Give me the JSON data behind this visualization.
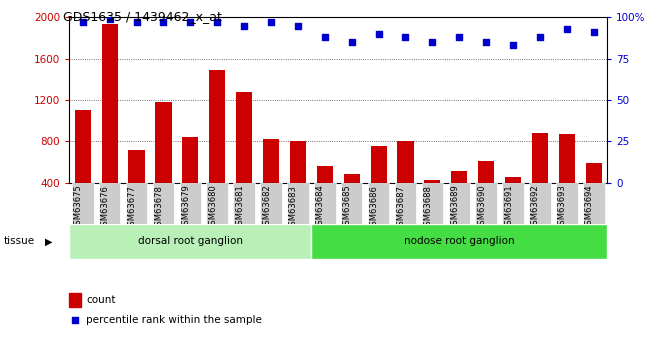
{
  "title": "GDS1635 / 1439462_x_at",
  "categories": [
    "GSM63675",
    "GSM63676",
    "GSM63677",
    "GSM63678",
    "GSM63679",
    "GSM63680",
    "GSM63681",
    "GSM63682",
    "GSM63683",
    "GSM63684",
    "GSM63685",
    "GSM63686",
    "GSM63687",
    "GSM63688",
    "GSM63689",
    "GSM63690",
    "GSM63691",
    "GSM63692",
    "GSM63693",
    "GSM63694"
  ],
  "counts": [
    1100,
    1930,
    720,
    1180,
    840,
    1490,
    1280,
    820,
    800,
    560,
    490,
    760,
    800,
    430,
    510,
    610,
    460,
    880,
    870,
    590
  ],
  "percentile": [
    97,
    99,
    97,
    97,
    97,
    97,
    95,
    97,
    95,
    88,
    85,
    90,
    88,
    85,
    88,
    85,
    83,
    88,
    93,
    91
  ],
  "bar_color": "#cc0000",
  "dot_color": "#0000cc",
  "ylim_left": [
    400,
    2000
  ],
  "ylim_right": [
    0,
    100
  ],
  "yticks_left": [
    400,
    800,
    1200,
    1600,
    2000
  ],
  "yticks_right": [
    0,
    25,
    50,
    75,
    100
  ],
  "groups": [
    {
      "label": "dorsal root ganglion",
      "start": 0,
      "end": 9,
      "color": "#b8f0b8"
    },
    {
      "label": "nodose root ganglion",
      "start": 9,
      "end": 20,
      "color": "#44dd44"
    }
  ],
  "tissue_label": "tissue",
  "legend_count_label": "count",
  "legend_pct_label": "percentile rank within the sample",
  "grid_color": "#000000",
  "tick_bg_color": "#cccccc",
  "plot_bg": "#ffffff"
}
